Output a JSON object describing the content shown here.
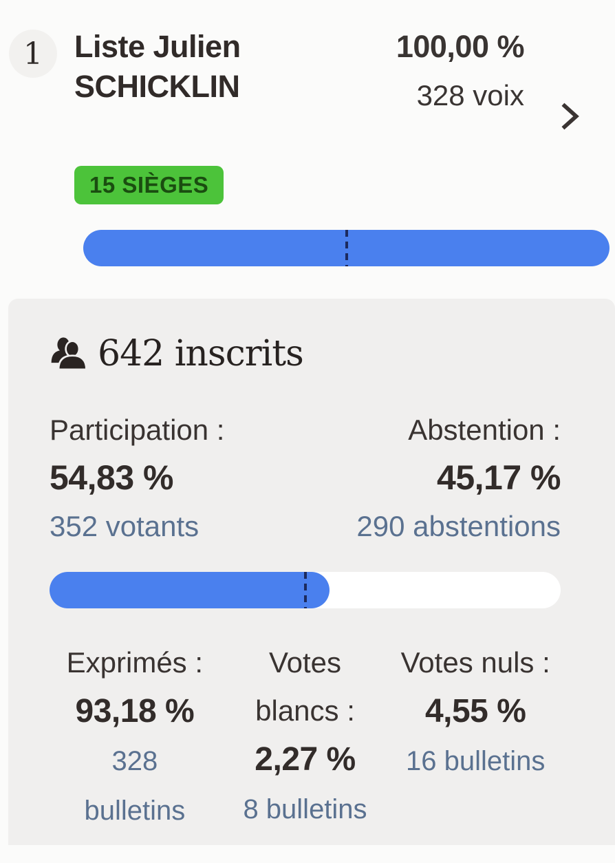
{
  "colors": {
    "accent-blue": "#4a80ee",
    "marker-navy": "#1c2a5e",
    "badge-green": "#4cc33a",
    "badge-green-text": "#1a4d10",
    "text-dark": "#332d2b",
    "text-slate": "#5a7190",
    "card-bg": "#f0efee",
    "page-bg": "#fbfbfa",
    "rank-circle-bg": "#f2f1ef",
    "bar-track": "#ffffff"
  },
  "list_result": {
    "rank": "1",
    "name": "Liste Julien SCHICKLIN",
    "percent": "100,00 %",
    "votes": "328 voix",
    "seats": "15 SIÈGES",
    "bar": {
      "fill_percent": 100,
      "marker_percent": 50
    }
  },
  "turnout": {
    "registered": "642 inscrits",
    "participation_label": "Participation :",
    "participation_value": "54,83 %",
    "participation_detail": "352 votants",
    "abstention_label": "Abstention :",
    "abstention_value": "45,17 %",
    "abstention_detail": "290 abstentions",
    "bar": {
      "fill_percent": 54.83,
      "marker_percent": 50
    },
    "columns": [
      {
        "label": "Exprimés :",
        "value": "93,18 %",
        "detail": "328 bulletins"
      },
      {
        "label": "Votes blancs :",
        "value": "2,27 %",
        "detail": "8 bulletins"
      },
      {
        "label": "Votes nuls :",
        "value": "4,55 %",
        "detail": "16 bulletins"
      }
    ]
  }
}
